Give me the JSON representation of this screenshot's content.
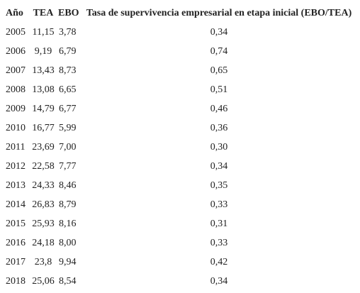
{
  "table": {
    "header": [
      "Año",
      "TEA",
      "EBO",
      "Tasa de supervivencia empresarial en etapa inicial (EBO/TEA)"
    ],
    "rows": [
      [
        "2005",
        "11,15",
        "3,78",
        "0,34"
      ],
      [
        "2006",
        "9,19",
        "6,79",
        "0,74"
      ],
      [
        "2007",
        "13,43",
        "8,73",
        "0,65"
      ],
      [
        "2008",
        "13,08",
        "6,65",
        "0,51"
      ],
      [
        "2009",
        "14,79",
        "6,77",
        "0,46"
      ],
      [
        "2010",
        "16,77",
        "5,99",
        "0,36"
      ],
      [
        "2011",
        "23,69",
        "7,00",
        "0,30"
      ],
      [
        "2012",
        "22,58",
        "7,77",
        "0,34"
      ],
      [
        "2013",
        "24,33",
        "8,46",
        "0,35"
      ],
      [
        "2014",
        "26,83",
        "8,79",
        "0,33"
      ],
      [
        "2015",
        "25,93",
        "8,16",
        "0,31"
      ],
      [
        "2016",
        "24,18",
        "8,00",
        "0,33"
      ],
      [
        "2017",
        "23,8",
        "9,94",
        "0,42"
      ],
      [
        "2018",
        "25,06",
        "8,54",
        "0,34"
      ]
    ]
  }
}
